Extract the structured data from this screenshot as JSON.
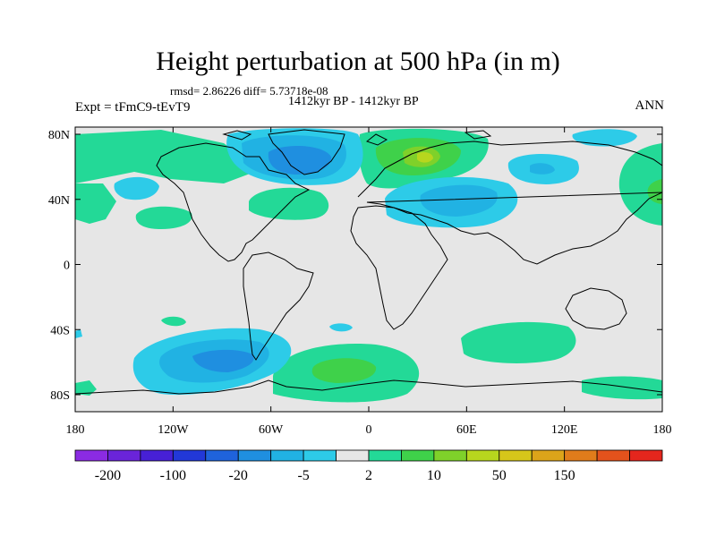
{
  "title": "Height perturbation at 500 hPa (in m)",
  "stats": "rmsd= 2.86226 diff= 5.73718e-08",
  "period": "1412kyr BP - 1412kyr BP",
  "left_label": "Expt = tFmC9-tEvT9",
  "right_label": "ANN",
  "axes": {
    "lat_ticks": [
      "80N",
      "40N",
      "0",
      "40S",
      "80S"
    ],
    "lon_ticks": [
      "180",
      "120W",
      "60W",
      "0",
      "60E",
      "120E",
      "180"
    ]
  },
  "colorbar": {
    "colors": [
      "#8b2be2",
      "#6a24d9",
      "#4720d6",
      "#2238d8",
      "#1f63dc",
      "#1f8fe0",
      "#21b2e3",
      "#2dcbe8",
      "#e6e6e6",
      "#23d997",
      "#3fd14a",
      "#7fd12a",
      "#b7d61e",
      "#d6c61a",
      "#dca41a",
      "#e07c1b",
      "#e3521c",
      "#e4261d"
    ],
    "labels": [
      "-200",
      "-100",
      "-20",
      "-5",
      "2",
      "10",
      "50",
      "150"
    ]
  },
  "field_colors": {
    "background": "#e6e6e6",
    "pos_weak": "#23d997",
    "pos_mid": "#3fd14a",
    "pos_strong": "#7fd12a",
    "pos_max": "#b7d61e",
    "neg_weak": "#2dcbe8",
    "neg_mid": "#21b2e3",
    "neg_strong": "#1f8fe0",
    "neg_max": "#1f63dc"
  }
}
